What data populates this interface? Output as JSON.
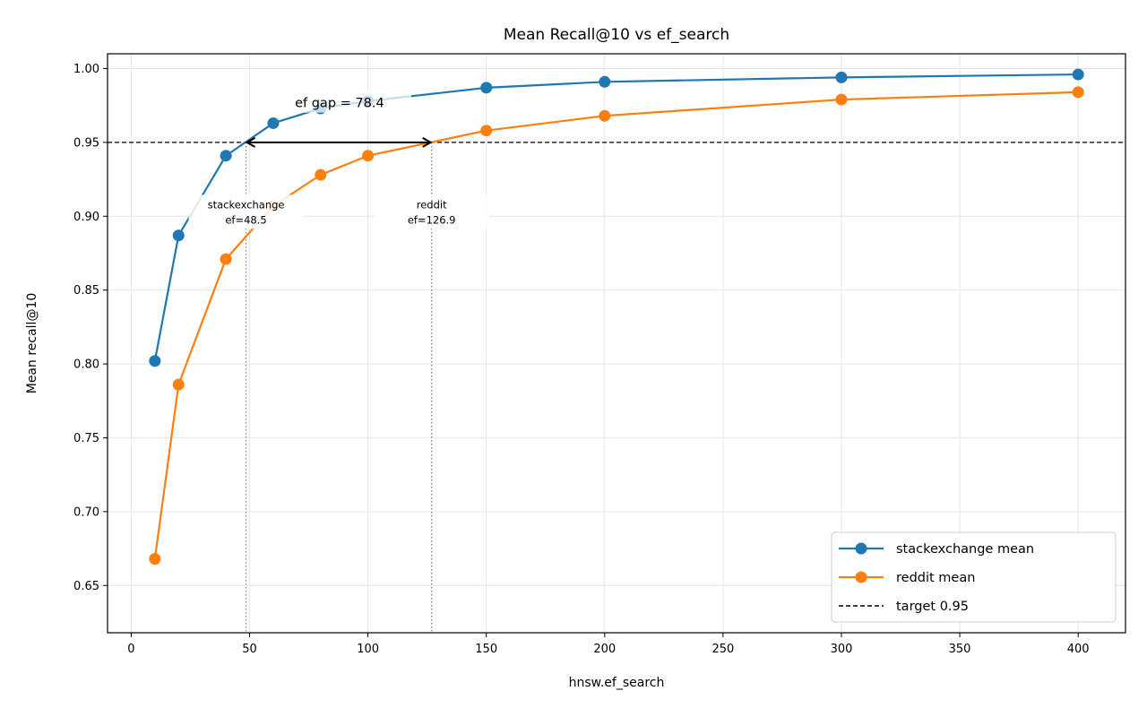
{
  "chart_data": {
    "type": "line",
    "title": "Mean Recall@10 vs ef_search",
    "xlabel": "hnsw.ef_search",
    "ylabel": "Mean recall@10",
    "xlim": [
      -10,
      420
    ],
    "ylim": [
      0.618,
      1.01
    ],
    "x_ticks": [
      0,
      50,
      100,
      150,
      200,
      250,
      300,
      350,
      400
    ],
    "y_ticks": [
      0.65,
      0.7,
      0.75,
      0.8,
      0.85,
      0.9,
      0.95,
      1.0
    ],
    "y_tick_labels": [
      "0.65",
      "0.70",
      "0.75",
      "0.80",
      "0.85",
      "0.90",
      "0.95",
      "1.00"
    ],
    "grid": true,
    "legend_position": "bottom-right",
    "series": [
      {
        "name": "stackexchange mean",
        "color": "#1f77b4",
        "marker": "circle",
        "x": [
          10,
          20,
          40,
          60,
          80,
          100,
          150,
          200,
          300,
          400
        ],
        "y": [
          0.802,
          0.887,
          0.941,
          0.963,
          0.973,
          0.978,
          0.987,
          0.991,
          0.994,
          0.996
        ]
      },
      {
        "name": "reddit mean",
        "color": "#ff7f0e",
        "marker": "circle",
        "x": [
          10,
          20,
          40,
          60,
          80,
          100,
          150,
          200,
          300,
          400
        ],
        "y": [
          0.668,
          0.786,
          0.871,
          0.907,
          0.928,
          0.941,
          0.958,
          0.968,
          0.979,
          0.984
        ]
      }
    ],
    "target_line": {
      "name": "target 0.95",
      "y": 0.95,
      "color": "#000000",
      "style": "dashed"
    },
    "annotations": {
      "stackexchange": {
        "line1": "stackexchange",
        "line2": "ef=48.5",
        "x": 48.5,
        "label_y": 0.903
      },
      "reddit": {
        "line1": "reddit",
        "line2": "ef=126.9",
        "x": 126.9,
        "label_y": 0.903
      },
      "gap": {
        "text": "ef gap = 78.4",
        "x_from": 48.5,
        "x_to": 126.9,
        "y": 0.95,
        "text_x": 88,
        "text_y": 0.975
      }
    }
  }
}
